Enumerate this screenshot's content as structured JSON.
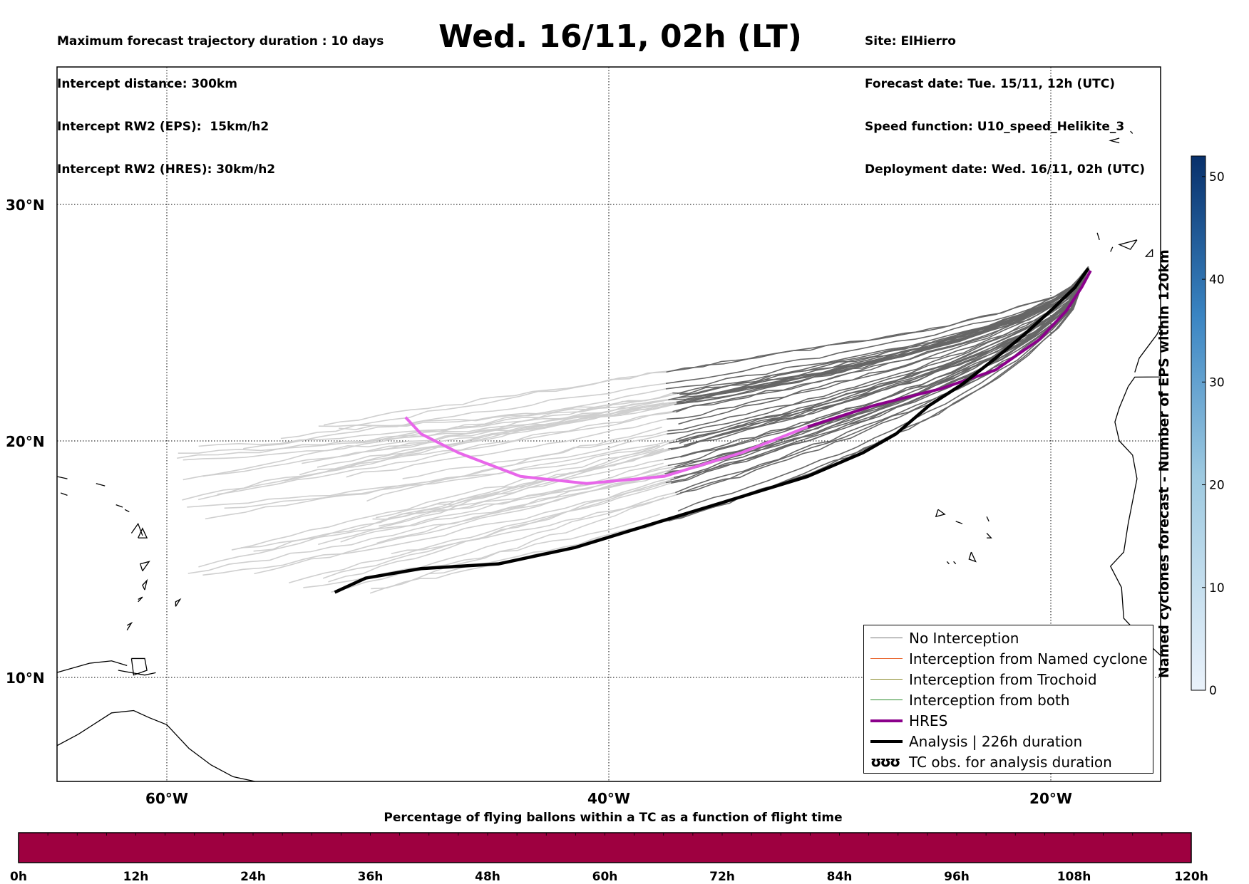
{
  "header_left": [
    "Maximum forecast trajectory duration : 10 days",
    "Intercept distance: 300km",
    "Intercept RW2 (EPS):  15km/h2",
    "Intercept RW2 (HRES): 30km/h2"
  ],
  "title": "Wed. 16/11, 02h (LT)",
  "header_right": [
    "Site: ElHierro",
    "Forecast date: Tue. 15/11, 12h (UTC)",
    "Speed function: U10_speed_Helikite_3",
    "Deployment date: Wed. 16/11, 02h (UTC)"
  ],
  "map": {
    "lon_range": [
      -65,
      15
    ],
    "lat_range": [
      5,
      35
    ],
    "lon_ticks": [
      -60,
      -40,
      -20
    ],
    "lon_tick_labels": [
      "60°W",
      "40°W",
      "20°W"
    ],
    "lat_ticks": [
      30,
      20,
      10
    ],
    "lat_tick_labels": [
      "30°N",
      "20°N",
      "10°N"
    ],
    "grid": "dotted"
  },
  "trajectories": {
    "hres": [
      [
        -18.2,
        27.2
      ],
      [
        -18.6,
        26.5
      ],
      [
        -19.3,
        25.5
      ],
      [
        -20.5,
        24.3
      ],
      [
        -22.5,
        23.0
      ],
      [
        -25.0,
        22.2
      ],
      [
        -28.0,
        21.5
      ],
      [
        -31.0,
        20.6
      ],
      [
        -34.0,
        19.5
      ],
      [
        -37.5,
        18.5
      ],
      [
        -41.0,
        18.2
      ],
      [
        -44.0,
        18.5
      ],
      [
        -46.8,
        19.5
      ],
      [
        -48.5,
        20.3
      ],
      [
        -49.2,
        21.0
      ]
    ],
    "analysis": [
      [
        -18.3,
        27.3
      ],
      [
        -18.9,
        26.5
      ],
      [
        -19.9,
        25.6
      ],
      [
        -21.2,
        24.5
      ],
      [
        -22.5,
        23.5
      ],
      [
        -24.0,
        22.4
      ],
      [
        -25.5,
        21.5
      ],
      [
        -27.0,
        20.3
      ],
      [
        -28.5,
        19.5
      ],
      [
        -31.0,
        18.5
      ],
      [
        -34.5,
        17.5
      ],
      [
        -38.0,
        16.5
      ],
      [
        -41.5,
        15.5
      ],
      [
        -45.0,
        14.8
      ],
      [
        -48.5,
        14.6
      ],
      [
        -51.0,
        14.2
      ],
      [
        -52.4,
        13.6
      ]
    ],
    "eps_count": 50
  },
  "legend": [
    {
      "label": "No Interception",
      "color": "#777777",
      "width": 1.5
    },
    {
      "label": "Interception from Named cyclone",
      "color": "#e8622a",
      "width": 1.5
    },
    {
      "label": "Interception from Trochoid",
      "color": "#8a8a2a",
      "width": 1.5
    },
    {
      "label": "Interception from both",
      "color": "#2a8a2a",
      "width": 1.5
    },
    {
      "label": "HRES",
      "color": "#8b008b",
      "width": 4
    },
    {
      "label": "Analysis | 226h duration",
      "color": "#000000",
      "width": 4
    },
    {
      "label": "TC obs. for analysis duration",
      "symbol": "ʊʊʊ"
    }
  ],
  "colorbar": {
    "label": "Named cyclones forecast - Number of EPS within 120km",
    "min": 0,
    "max": 52,
    "ticks": [
      0,
      10,
      20,
      30,
      40,
      50
    ],
    "color_low": "#eaf2fb",
    "color_high": "#08306b"
  },
  "time_bar": {
    "title": "Percentage of flying ballons within a TC as a function of flight time",
    "tick_labels": [
      "0h",
      "12h",
      "24h",
      "36h",
      "48h",
      "60h",
      "72h",
      "84h",
      "96h",
      "108h",
      "120h"
    ],
    "fill_color": "#9e0040"
  }
}
